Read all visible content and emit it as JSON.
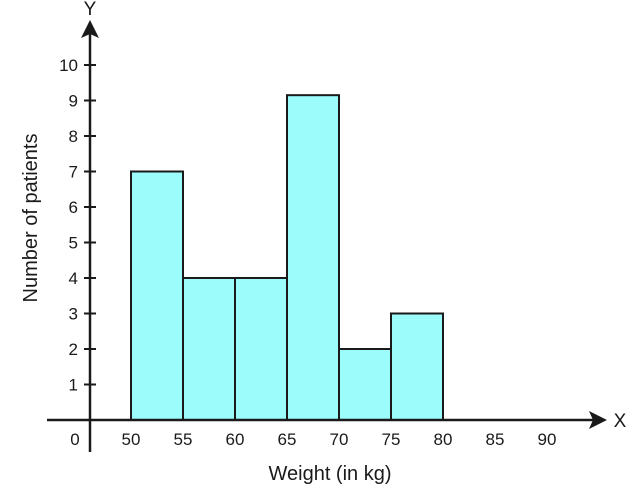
{
  "chart_data": {
    "type": "bar",
    "bins": [
      {
        "from": 50,
        "to": 55,
        "value": 7
      },
      {
        "from": 55,
        "to": 60,
        "value": 4
      },
      {
        "from": 60,
        "to": 65,
        "value": 4
      },
      {
        "from": 65,
        "to": 70,
        "value": 9.15
      },
      {
        "from": 70,
        "to": 75,
        "value": 2
      },
      {
        "from": 75,
        "to": 80,
        "value": 3
      }
    ],
    "x_ticks": [
      "50",
      "55",
      "60",
      "65",
      "70",
      "75",
      "80",
      "85",
      "90"
    ],
    "y_ticks": [
      "1",
      "2",
      "3",
      "4",
      "5",
      "6",
      "7",
      "8",
      "9",
      "10"
    ],
    "xlabel": "Weight (in kg)",
    "ylabel": "Number of patients",
    "x_axis_letter": "X",
    "y_axis_letter": "Y",
    "origin_label": "0",
    "xlim": [
      45,
      92
    ],
    "ylim": [
      0,
      10
    ],
    "grid": false,
    "bar_color": "#9cfcfc",
    "bar_stroke": "#1a1a1a",
    "axis_color": "#1a1a1a"
  }
}
